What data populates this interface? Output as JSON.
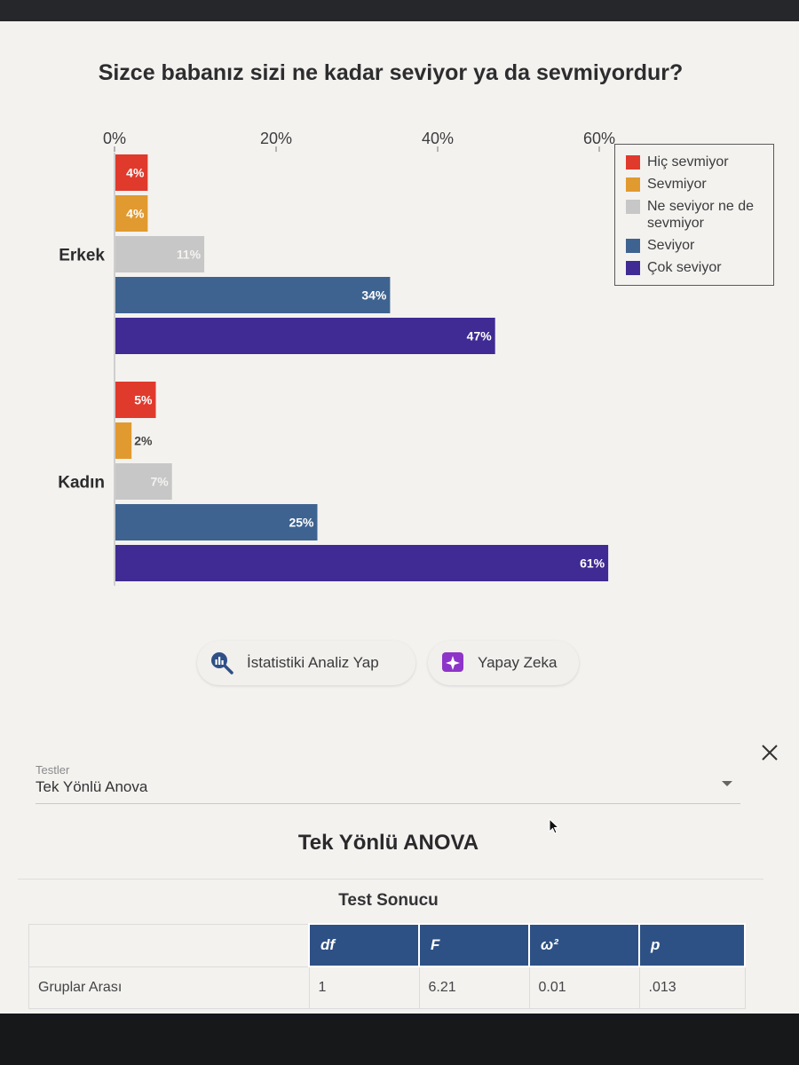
{
  "chart": {
    "title": "Sizce babanız sizi ne kadar seviyor ya da sevmiyordur?"
  },
  "chart_data": {
    "type": "bar",
    "orientation": "horizontal",
    "title": "Sizce babanız sizi ne kadar seviyor ya da sevmiyordur?",
    "categories": [
      "Erkek",
      "Kadın"
    ],
    "xlim": [
      0,
      60
    ],
    "xticks": [
      0,
      20,
      40,
      60
    ],
    "xtick_labels": [
      "0%",
      "20%",
      "40%",
      "60%"
    ],
    "legend_position": "top-right",
    "grid": false,
    "series": [
      {
        "name": "Hiç sevmiyor",
        "color": "#e03a2c",
        "values": [
          4,
          5
        ]
      },
      {
        "name": "Sevmiyor",
        "color": "#e19a2f",
        "values": [
          4,
          2
        ]
      },
      {
        "name": "Ne seviyor ne de sevmiyor",
        "color": "#c7c7c7",
        "values": [
          11,
          7
        ]
      },
      {
        "name": "Seviyor",
        "color": "#3e6390",
        "values": [
          34,
          25
        ]
      },
      {
        "name": "Çok seviyor",
        "color": "#3f2b93",
        "values": [
          47,
          61
        ]
      }
    ]
  },
  "legend": {
    "items": [
      "Hiç sevmiyor",
      "Sevmiyor",
      "Ne seviyor ne de sevmiyor",
      "Seviyor",
      "Çok seviyor"
    ]
  },
  "buttons": {
    "stats_label": "İstatistiki Analiz Yap",
    "stats_icon": "search-chart-icon",
    "ai_label": "Yapay Zeka",
    "ai_icon": "sparkle-icon"
  },
  "tests": {
    "label": "Testler",
    "selected": "Tek Yönlü Anova",
    "close_icon": "close-icon"
  },
  "anova": {
    "title": "Tek Yönlü ANOVA",
    "result_title": "Test Sonucu",
    "headers": [
      "df",
      "F",
      "ω²",
      "p"
    ],
    "rows": [
      {
        "label": "Gruplar Arası",
        "values": [
          "1",
          "6.21",
          "0.01",
          ".013"
        ]
      }
    ]
  },
  "colors": {
    "table_header": "#2e5185",
    "page_background": "#f3f2ef"
  }
}
